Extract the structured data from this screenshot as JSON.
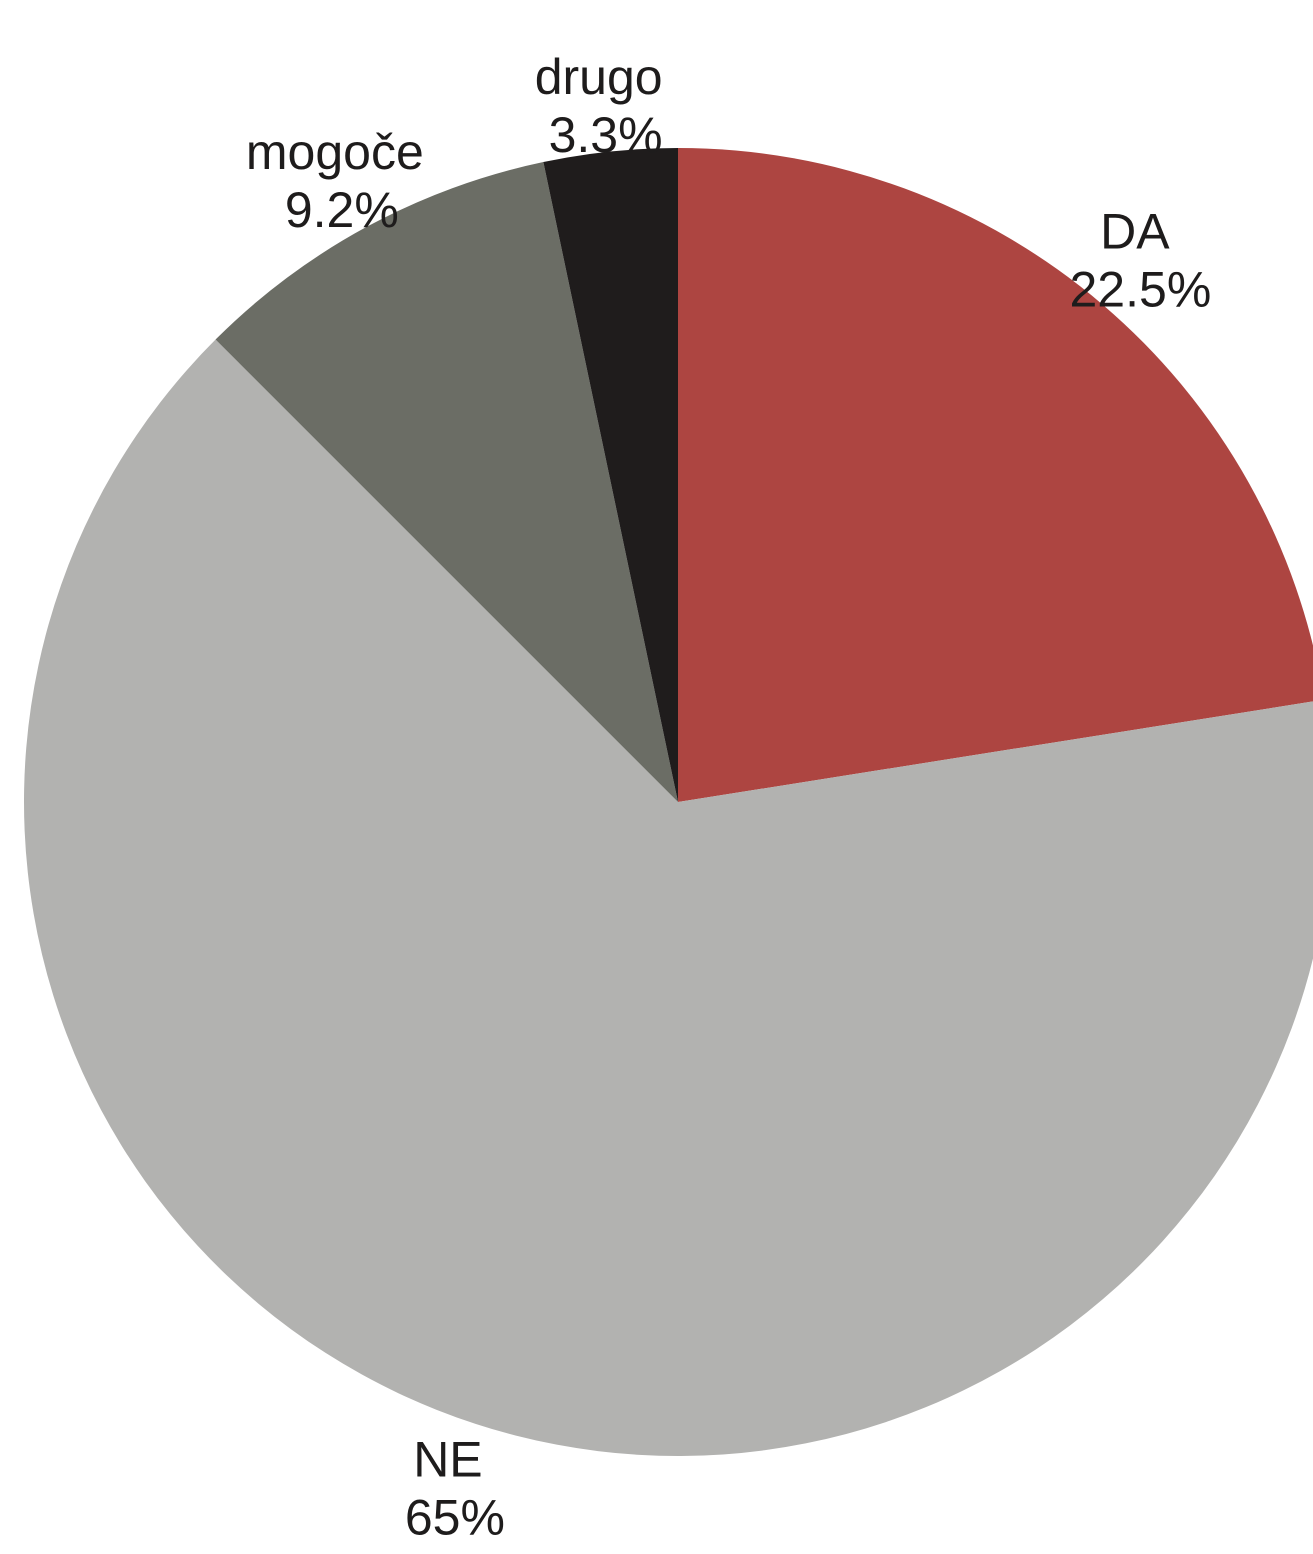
{
  "chart_data": {
    "type": "pie",
    "start": "12 o'clock",
    "direction": "clockwise",
    "slices": [
      {
        "label": "DA",
        "value": 22.5,
        "value_label": "22.5%",
        "color": "#ad4541"
      },
      {
        "label": "NE",
        "value": 65,
        "value_label": "65%",
        "color": "#b2b2b0"
      },
      {
        "label": "mogoče",
        "value": 9.2,
        "value_label": "9.2%",
        "color": "#6b6d65"
      },
      {
        "label": "drugo",
        "value": 3.3,
        "value_label": "3.3%",
        "color": "#1f1c1c"
      }
    ]
  }
}
